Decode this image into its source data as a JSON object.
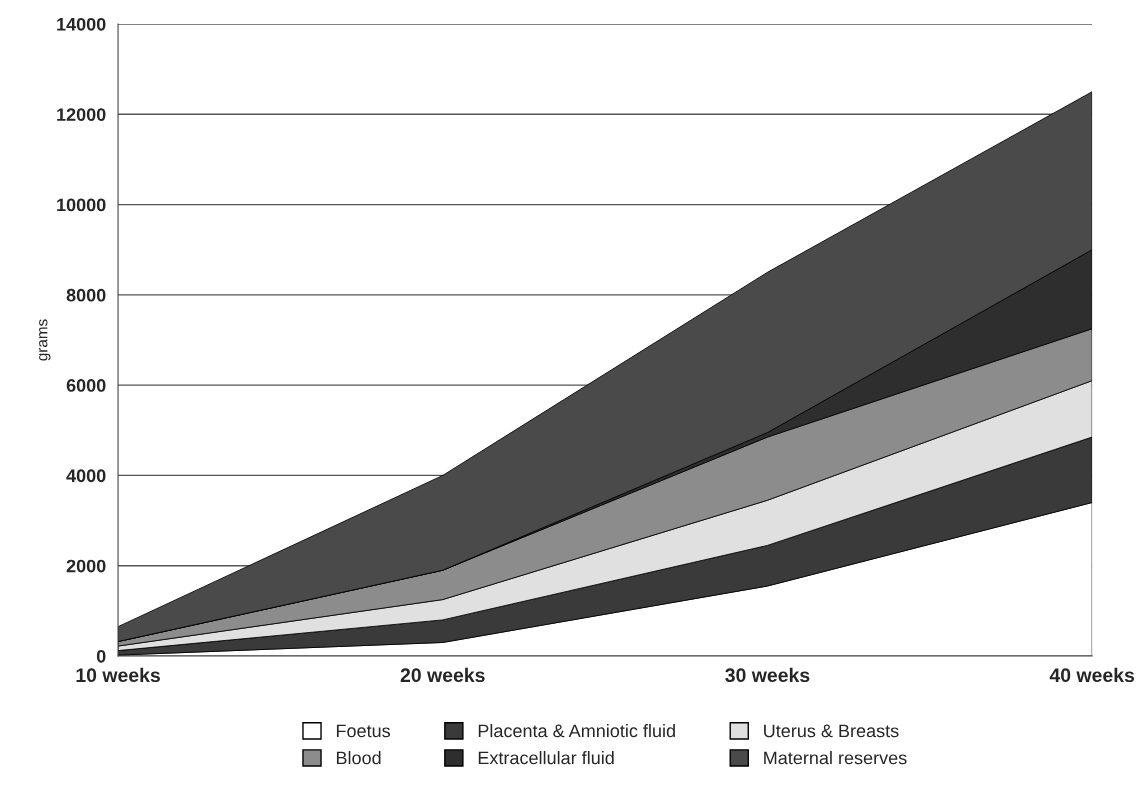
{
  "chart_data": {
    "type": "area",
    "stacked": true,
    "ylabel": "grams",
    "categories": [
      "10 weeks",
      "20 weeks",
      "30 weeks",
      "40 weeks"
    ],
    "series": [
      {
        "name": "Foetus",
        "color": "#ffffff",
        "values": [
          20,
          300,
          1550,
          3400
        ]
      },
      {
        "name": "Placenta & Amniotic fluid",
        "color": "#3a3a3a",
        "values": [
          100,
          500,
          900,
          1450
        ]
      },
      {
        "name": "Uterus & Breasts",
        "color": "#e0e0e0",
        "values": [
          100,
          450,
          1000,
          1250
        ]
      },
      {
        "name": "Blood",
        "color": "#8c8c8c",
        "values": [
          100,
          650,
          1400,
          1150
        ]
      },
      {
        "name": "Extracellular fluid",
        "color": "#2e2e2e",
        "values": [
          0,
          0,
          100,
          1750
        ]
      },
      {
        "name": "Maternal reserves",
        "color": "#4a4a4a",
        "values": [
          330,
          2100,
          3550,
          3500
        ]
      }
    ],
    "ylim": [
      0,
      14000
    ],
    "yticks": [
      0,
      2000,
      4000,
      6000,
      8000,
      10000,
      12000,
      14000
    ],
    "grid": "y",
    "legend": "bottom"
  }
}
